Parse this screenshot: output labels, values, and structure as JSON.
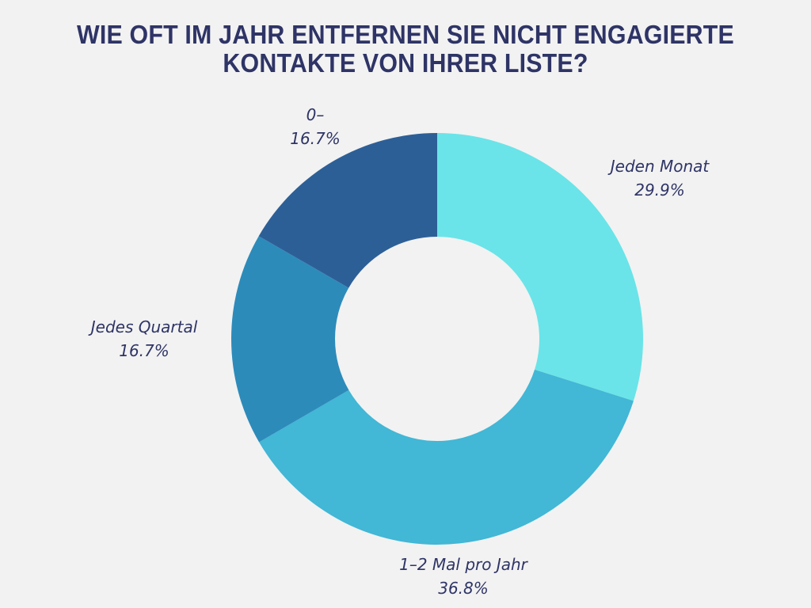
{
  "chart_data": {
    "type": "pie",
    "variant": "donut",
    "title": "WIE OFT IM JAHR ENTFERNEN SIE NICHT ENGAGIERTE KONTAKTE VON IHRER LISTE?",
    "title_lines": [
      "WIE OFT IM JAHR ENTFERNEN SIE NICHT ENGAGIERTE",
      "KONTAKTE VON IHRER LISTE?"
    ],
    "start": "top",
    "direction": "clockwise",
    "slices": [
      {
        "label": "Jeden Monat",
        "value": 29.9,
        "value_label": "29.9%",
        "color": "#6ae4e8"
      },
      {
        "label": "1–2 Mal pro Jahr",
        "value": 36.8,
        "value_label": "36.8%",
        "color": "#42b7d6"
      },
      {
        "label": "Jedes Quartal",
        "value": 16.7,
        "value_label": "16.7%",
        "color": "#2d8bba"
      },
      {
        "label": "0–",
        "value": 16.7,
        "value_label": "16.7%",
        "color": "#2d5f97"
      }
    ],
    "colors": {
      "background": "#f2f2f2",
      "text": "#2e3466"
    }
  }
}
